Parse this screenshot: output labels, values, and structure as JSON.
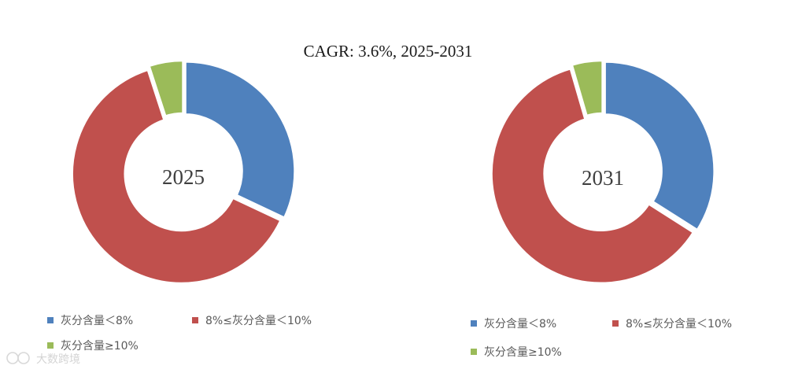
{
  "title": "CAGR:   3.6%, 2025-2031",
  "chart_data": [
    {
      "type": "pie",
      "center_label": "2025",
      "categories": [
        "灰分含量＜8%",
        "8%≤灰分含量＜10%",
        "灰分含量≥10%"
      ],
      "values": [
        32,
        63,
        5
      ],
      "colors": [
        "#4f81bd",
        "#c0504d",
        "#9bbb59"
      ],
      "legend_position": "bottom"
    },
    {
      "type": "pie",
      "center_label": "2031",
      "categories": [
        "灰分含量＜8%",
        "8%≤灰分含量＜10%",
        "灰分含量≥10%"
      ],
      "values": [
        34,
        61.5,
        4.5
      ],
      "colors": [
        "#4f81bd",
        "#c0504d",
        "#9bbb59"
      ],
      "legend_position": "bottom"
    }
  ],
  "watermark": {
    "text": "大数跨境"
  }
}
